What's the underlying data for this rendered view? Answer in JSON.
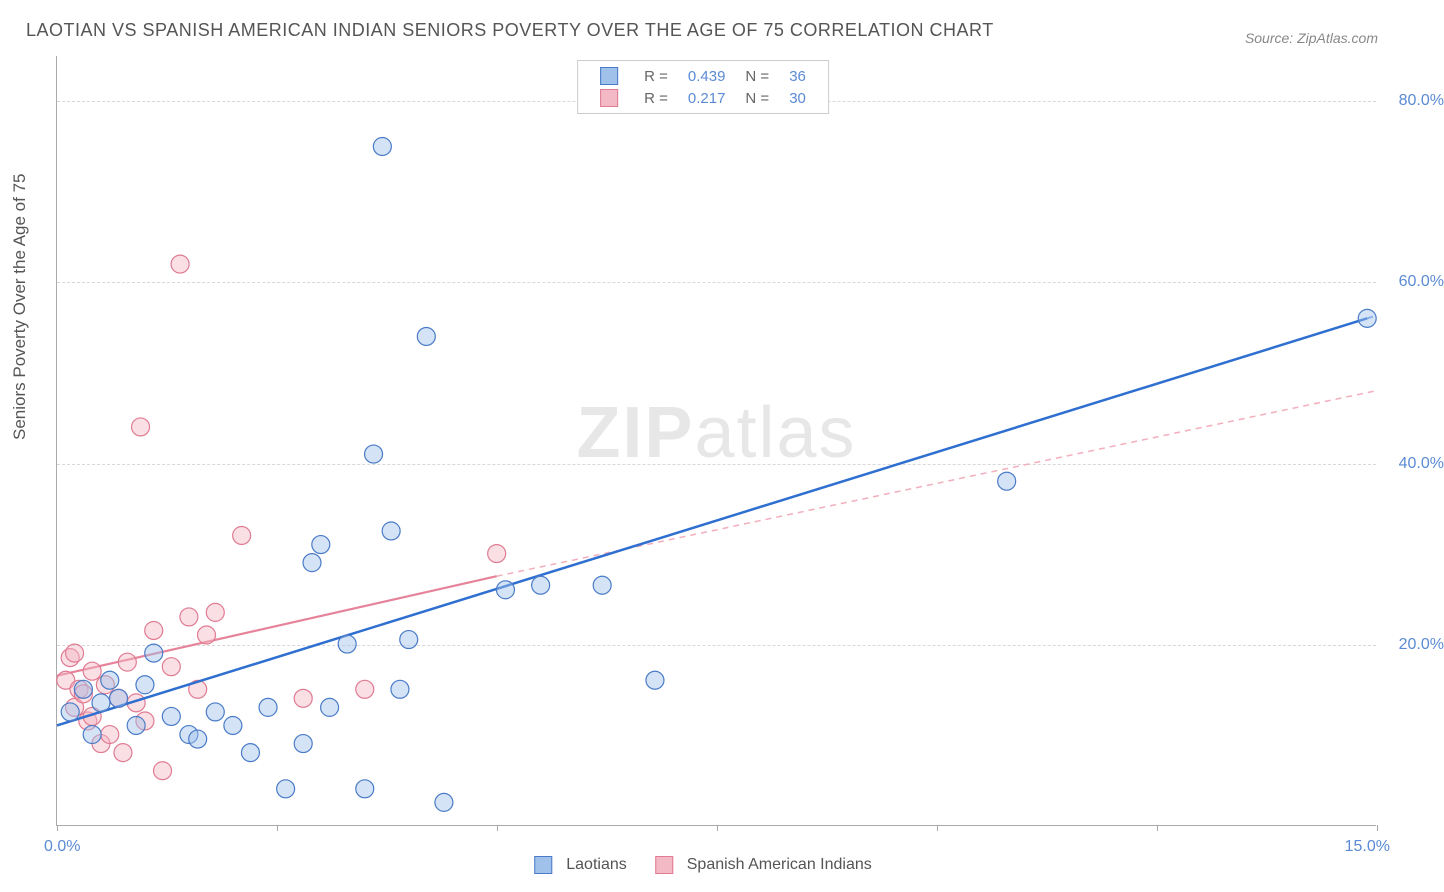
{
  "title": "LAOTIAN VS SPANISH AMERICAN INDIAN SENIORS POVERTY OVER THE AGE OF 75 CORRELATION CHART",
  "source": "Source: ZipAtlas.com",
  "y_axis_title": "Seniors Poverty Over the Age of 75",
  "watermark_1": "ZIP",
  "watermark_2": "atlas",
  "chart": {
    "type": "scatter",
    "background_color": "#ffffff",
    "grid_color": "#d8d8d8",
    "axis_color": "#aaaaaa",
    "tick_label_color": "#5b8bd4",
    "axis_title_color": "#555555",
    "xlim": [
      0,
      15
    ],
    "ylim": [
      0,
      85
    ],
    "y_ticks": [
      20,
      40,
      60,
      80
    ],
    "y_tick_labels": [
      "20.0%",
      "40.0%",
      "60.0%",
      "80.0%"
    ],
    "x_ticks": [
      0,
      2.5,
      5,
      7.5,
      10,
      12.5,
      15
    ],
    "x_axis_labels": {
      "left": "0.0%",
      "right": "15.0%"
    },
    "marker_radius": 9,
    "marker_stroke_width": 1.2,
    "marker_fill_opacity": 0.45,
    "series": [
      {
        "name": "Laotians",
        "color_fill": "#9fc1ea",
        "color_stroke": "#4a7bc8",
        "points": [
          [
            0.15,
            12.5
          ],
          [
            0.3,
            15
          ],
          [
            0.4,
            10
          ],
          [
            0.5,
            13.5
          ],
          [
            0.6,
            16
          ],
          [
            0.7,
            14
          ],
          [
            0.9,
            11
          ],
          [
            1.0,
            15.5
          ],
          [
            1.1,
            19
          ],
          [
            1.3,
            12
          ],
          [
            1.5,
            10
          ],
          [
            1.6,
            9.5
          ],
          [
            1.8,
            12.5
          ],
          [
            2.0,
            11
          ],
          [
            2.2,
            8
          ],
          [
            2.4,
            13
          ],
          [
            2.6,
            4
          ],
          [
            2.8,
            9
          ],
          [
            2.9,
            29
          ],
          [
            3.0,
            31
          ],
          [
            3.1,
            13
          ],
          [
            3.3,
            20
          ],
          [
            3.5,
            4
          ],
          [
            3.6,
            41
          ],
          [
            3.7,
            75
          ],
          [
            3.8,
            32.5
          ],
          [
            3.9,
            15
          ],
          [
            4.0,
            20.5
          ],
          [
            4.2,
            54
          ],
          [
            4.4,
            2.5
          ],
          [
            5.1,
            26
          ],
          [
            5.5,
            26.5
          ],
          [
            6.2,
            26.5
          ],
          [
            6.8,
            16
          ],
          [
            10.8,
            38
          ],
          [
            14.9,
            56
          ]
        ],
        "regression": {
          "R_label": "R =",
          "R": "0.439",
          "N_label": "N =",
          "N": "36",
          "line_color": "#2f6fd0",
          "line_width": 2.5,
          "dash_color": "#6a9de0",
          "start": [
            0,
            11
          ],
          "solid_end": [
            14.9,
            56
          ],
          "dash_end": [
            15,
            56.3
          ]
        }
      },
      {
        "name": "Spanish American Indians",
        "color_fill": "#f3b9c4",
        "color_stroke": "#e07b92",
        "points": [
          [
            0.1,
            16
          ],
          [
            0.15,
            18.5
          ],
          [
            0.2,
            13
          ],
          [
            0.2,
            19
          ],
          [
            0.25,
            15
          ],
          [
            0.3,
            14.5
          ],
          [
            0.35,
            11.5
          ],
          [
            0.4,
            17
          ],
          [
            0.4,
            12
          ],
          [
            0.5,
            9
          ],
          [
            0.55,
            15.5
          ],
          [
            0.6,
            10
          ],
          [
            0.7,
            14
          ],
          [
            0.75,
            8
          ],
          [
            0.8,
            18
          ],
          [
            0.9,
            13.5
          ],
          [
            0.95,
            44
          ],
          [
            1.0,
            11.5
          ],
          [
            1.1,
            21.5
          ],
          [
            1.2,
            6
          ],
          [
            1.3,
            17.5
          ],
          [
            1.4,
            62
          ],
          [
            1.5,
            23
          ],
          [
            1.6,
            15
          ],
          [
            1.7,
            21
          ],
          [
            1.8,
            23.5
          ],
          [
            2.1,
            32
          ],
          [
            2.8,
            14
          ],
          [
            3.5,
            15
          ],
          [
            5.0,
            30
          ]
        ],
        "regression": {
          "R_label": "R =",
          "R": "0.217",
          "N_label": "N =",
          "N": "30",
          "line_color": "#e6839a",
          "line_width": 2.2,
          "dash_color": "#f2b0bd",
          "start": [
            0,
            16.5
          ],
          "solid_end": [
            5.0,
            27.5
          ],
          "dash_end": [
            15,
            48
          ]
        }
      }
    ]
  },
  "legend_bottom": [
    {
      "label": "Laotians",
      "fill": "#9fc1ea",
      "stroke": "#4a7bc8"
    },
    {
      "label": "Spanish American Indians",
      "fill": "#f3b9c4",
      "stroke": "#e07b92"
    }
  ]
}
